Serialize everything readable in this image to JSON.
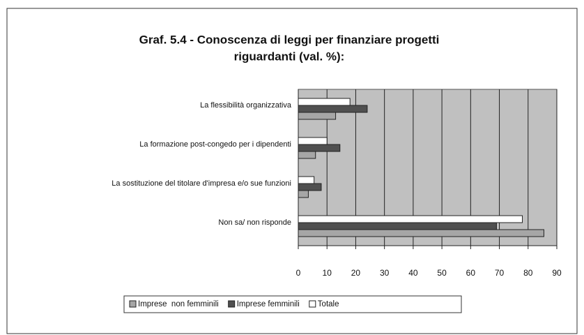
{
  "chart_data": {
    "type": "hbar",
    "title": [
      "Graf. 5.4 - Conoscenza di leggi per finanziare progetti",
      "riguardanti (val. %):"
    ],
    "categories": [
      "La flessibilità organizzativa",
      "La formazione post-congedo per i dipendenti",
      "La sostituzione del titolare d'impresa e/o sue funzioni",
      "Non sa/ non risponde"
    ],
    "series": [
      {
        "name": "Imprese  non femminili",
        "color": "#a6a6a6",
        "values": [
          13,
          6,
          3.5,
          85.5
        ]
      },
      {
        "name": "Imprese femminili",
        "color": "#505050",
        "values": [
          24,
          14.5,
          8,
          69
        ]
      },
      {
        "name": "Totale",
        "color": "#ffffff",
        "values": [
          18,
          10,
          5.5,
          78
        ]
      }
    ],
    "xlim": [
      0,
      90
    ],
    "xticks": [
      0,
      10,
      20,
      30,
      40,
      50,
      60,
      70,
      80,
      90
    ],
    "grid": true,
    "legend": "bottom"
  }
}
